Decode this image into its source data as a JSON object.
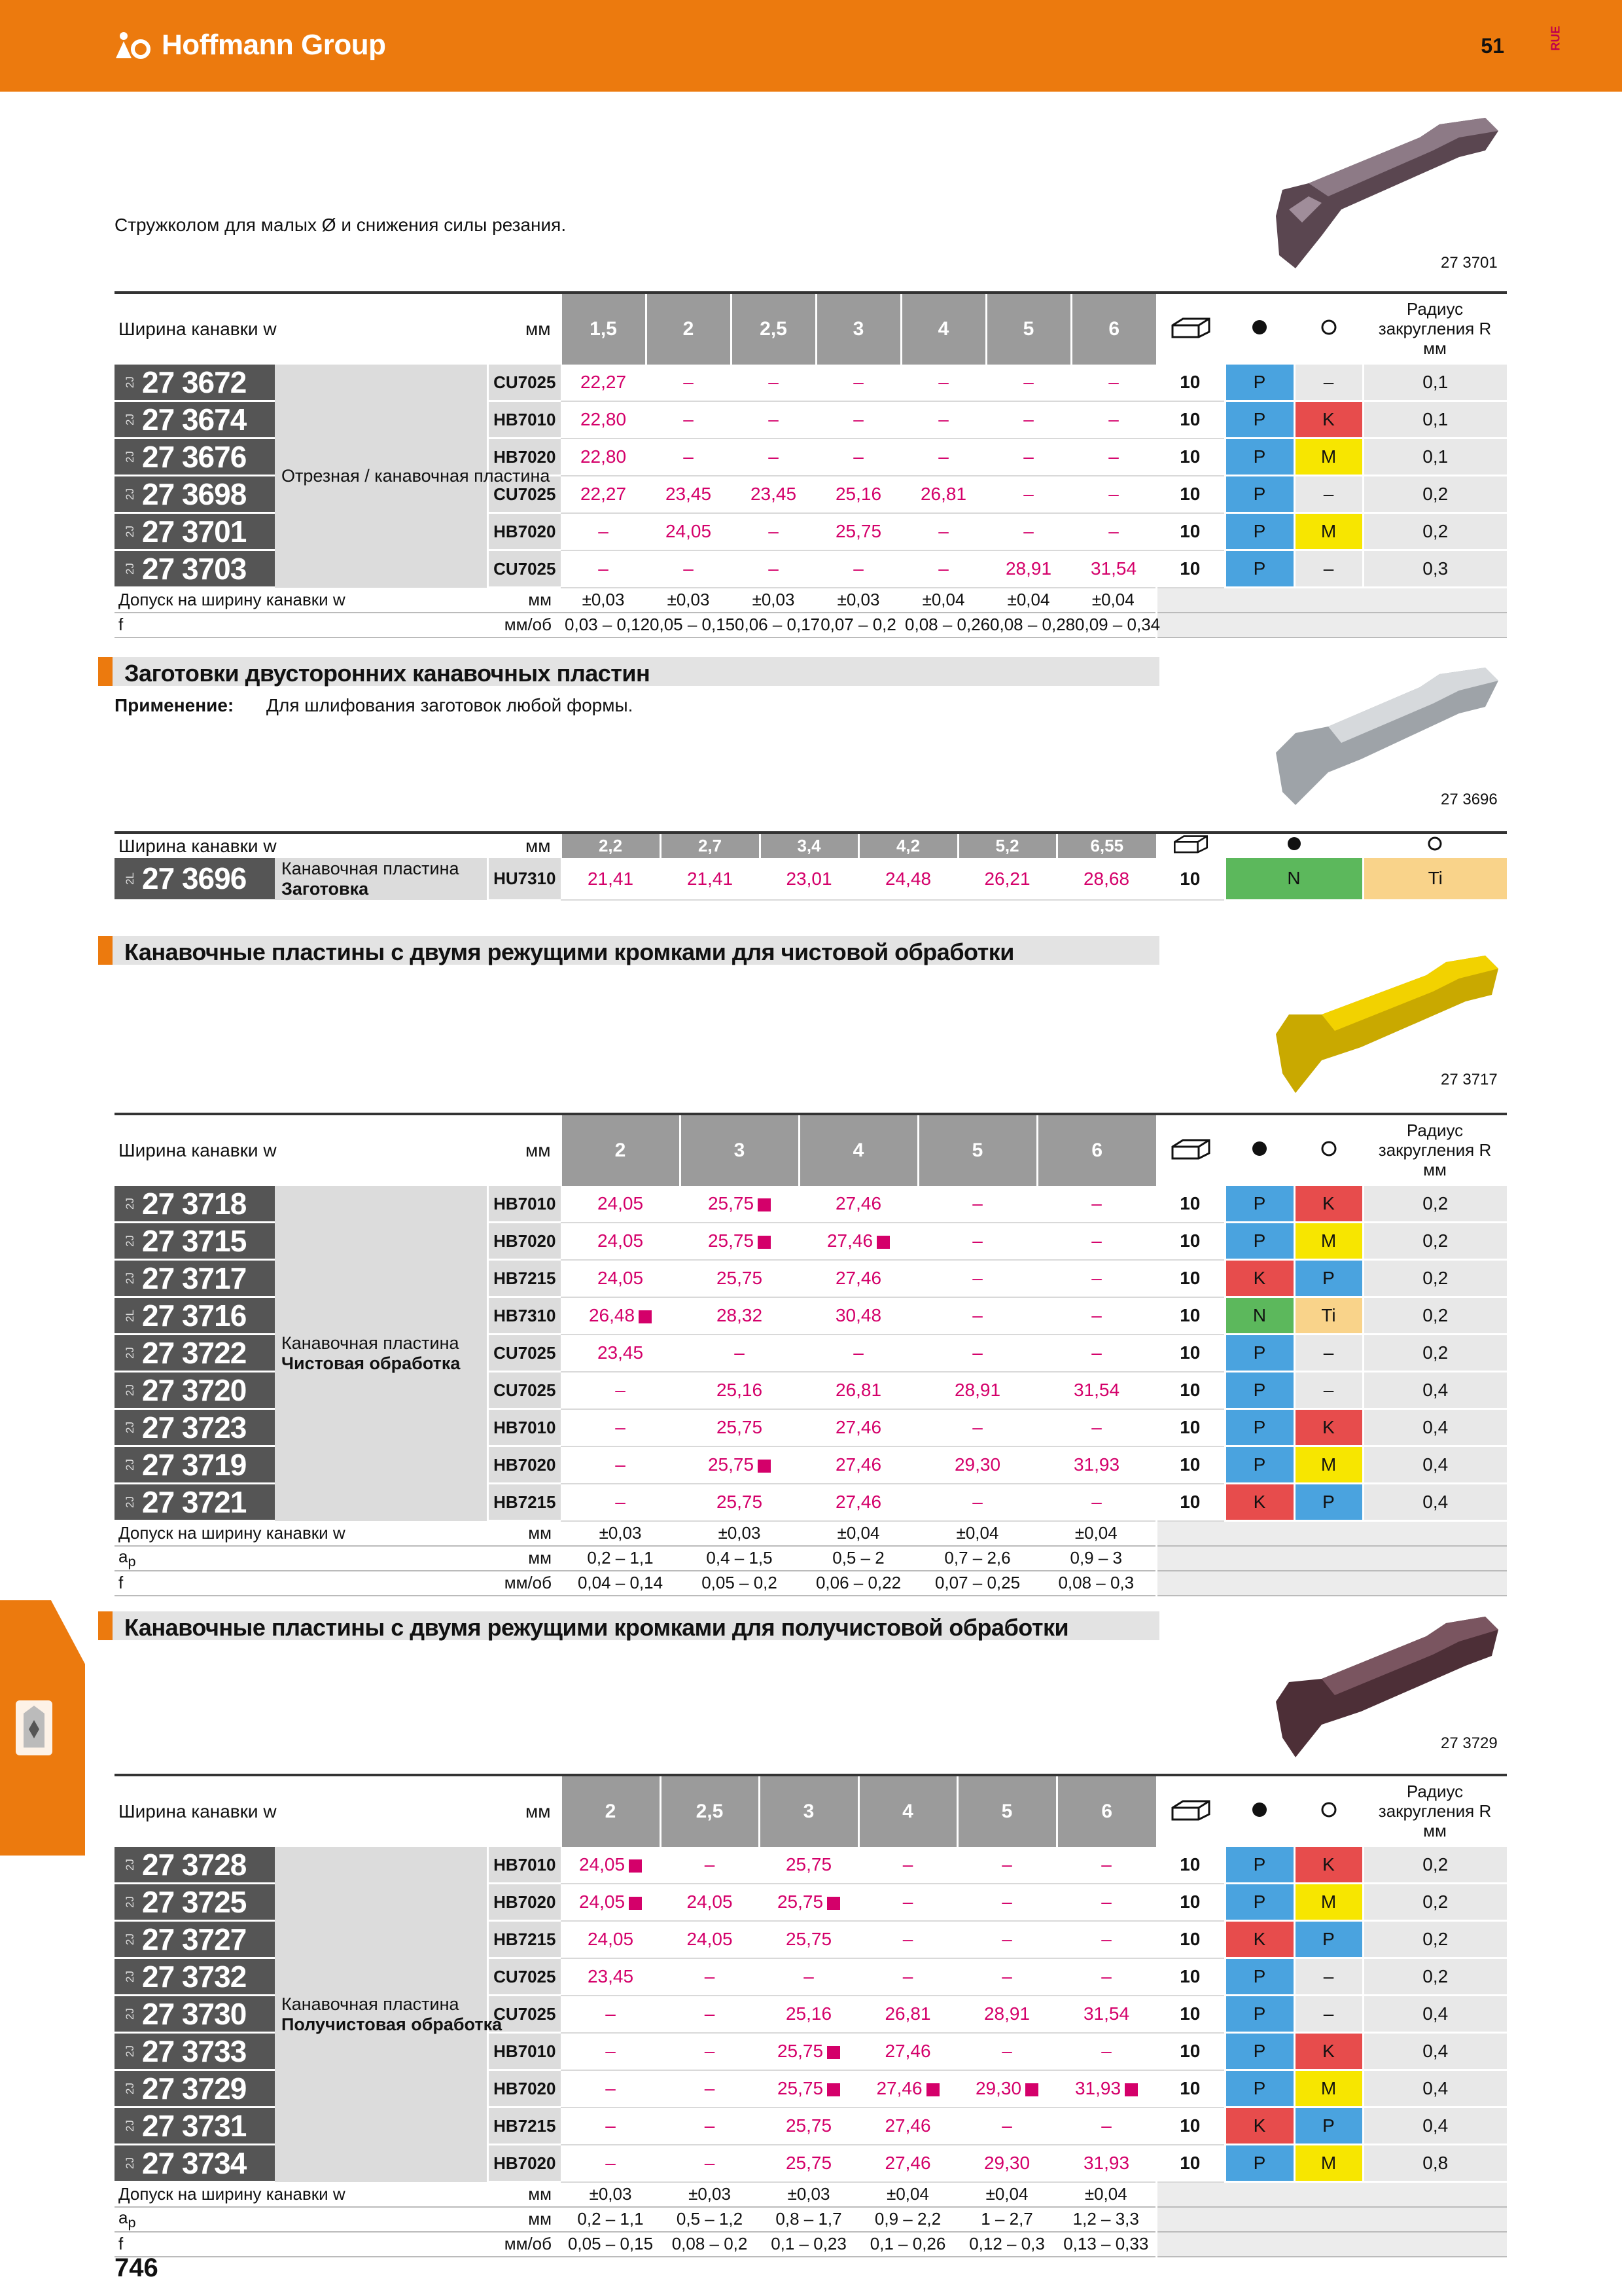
{
  "header": {
    "brand": "Hoffmann Group",
    "page_top": "51",
    "lang": "RUE",
    "page_bottom": "746"
  },
  "intro": "Стружколом для малых Ø и снижения силы резания.",
  "icons": {
    "box": "package-icon",
    "filled": "filled-circle-icon",
    "empty": "empty-circle-icon",
    "brand_mark": "hoffmann-logo-icon",
    "side": "grooving-tool-icon"
  },
  "labels": {
    "width": "Ширина канавки w",
    "mm": "мм",
    "radius": "Радиус закругления R мм",
    "tolerance": "Допуск на ширину канавки w",
    "ap": "a",
    "ap_sub": "p",
    "f": "f",
    "mm_ob": "мм/об"
  },
  "colors": {
    "orange": "#ec7a0e",
    "magenta": "#d4006a",
    "P": "#4aa3df",
    "K": "#e74c4c",
    "M": "#f7e600",
    "N": "#5cb85c",
    "Ti": "#f9d38a"
  },
  "table1": {
    "image_caption": "27 3701",
    "widths": [
      "1,5",
      "2",
      "2,5",
      "3",
      "4",
      "5",
      "6"
    ],
    "description": "Отрезная / канавочная пластина",
    "rows": [
      {
        "prefix": "2J",
        "code": "27 3672",
        "grade": "CU7025",
        "vals": [
          "22,27",
          "–",
          "–",
          "–",
          "–",
          "–",
          "–"
        ],
        "pack": "10",
        "m1": "P",
        "m2": "–",
        "r": "0,1"
      },
      {
        "prefix": "2J",
        "code": "27 3674",
        "grade": "HB7010",
        "vals": [
          "22,80",
          "–",
          "–",
          "–",
          "–",
          "–",
          "–"
        ],
        "pack": "10",
        "m1": "P",
        "m2": "K",
        "r": "0,1"
      },
      {
        "prefix": "2J",
        "code": "27 3676",
        "grade": "HB7020",
        "vals": [
          "22,80",
          "–",
          "–",
          "–",
          "–",
          "–",
          "–"
        ],
        "pack": "10",
        "m1": "P",
        "m2": "M",
        "r": "0,1"
      },
      {
        "prefix": "2J",
        "code": "27 3698",
        "grade": "CU7025",
        "vals": [
          "22,27",
          "23,45",
          "23,45",
          "25,16",
          "26,81",
          "–",
          "–"
        ],
        "pack": "10",
        "m1": "P",
        "m2": "–",
        "r": "0,2"
      },
      {
        "prefix": "2J",
        "code": "27 3701",
        "grade": "HB7020",
        "vals": [
          "–",
          "24,05",
          "–",
          "25,75",
          "–",
          "–",
          "–"
        ],
        "pack": "10",
        "m1": "P",
        "m2": "M",
        "r": "0,2"
      },
      {
        "prefix": "2J",
        "code": "27 3703",
        "grade": "CU7025",
        "vals": [
          "–",
          "–",
          "–",
          "–",
          "–",
          "28,91",
          "31,54"
        ],
        "pack": "10",
        "m1": "P",
        "m2": "–",
        "r": "0,3"
      }
    ],
    "tolerance": [
      "±0,03",
      "±0,03",
      "±0,03",
      "±0,03",
      "±0,04",
      "±0,04",
      "±0,04"
    ],
    "f": [
      "0,03 – 0,12",
      "0,05 – 0,15",
      "0,06 – 0,17",
      "0,07 – 0,2",
      "0,08 – 0,26",
      "0,08 – 0,28",
      "0,09 – 0,34"
    ]
  },
  "section2": {
    "title": "Заготовки двусторонних канавочных пластин",
    "apply_label": "Применение:",
    "apply_text": "Для шлифования заготовок любой формы.",
    "image_caption": "27 3696",
    "widths": [
      "2,2",
      "2,7",
      "3,4",
      "4,2",
      "5,2",
      "6,55"
    ],
    "row": {
      "prefix": "2L",
      "code": "27 3696",
      "desc1": "Канавочная пластина",
      "desc2": "Заготовка",
      "grade": "HU7310",
      "vals": [
        "21,41",
        "21,41",
        "23,01",
        "24,48",
        "26,21",
        "28,68"
      ],
      "pack": "10",
      "m1": "N",
      "m2": "Ti"
    }
  },
  "section3": {
    "title": "Канавочные пластины с двумя режущими кромками для чистовой обработки",
    "image_caption": "27 3717",
    "widths": [
      "2",
      "3",
      "4",
      "5",
      "6"
    ],
    "desc1": "Канавочная пластина",
    "desc2": "Чистовая обработка",
    "rows": [
      {
        "prefix": "2J",
        "code": "27 3718",
        "grade": "HB7010",
        "vals": [
          "24,05",
          "25,75",
          "27,46",
          "–",
          "–"
        ],
        "sq": [
          false,
          true,
          false,
          false,
          false
        ],
        "pack": "10",
        "m1": "P",
        "m2": "K",
        "r": "0,2"
      },
      {
        "prefix": "2J",
        "code": "27 3715",
        "grade": "HB7020",
        "vals": [
          "24,05",
          "25,75",
          "27,46",
          "–",
          "–"
        ],
        "sq": [
          false,
          true,
          true,
          false,
          false
        ],
        "pack": "10",
        "m1": "P",
        "m2": "M",
        "r": "0,2"
      },
      {
        "prefix": "2J",
        "code": "27 3717",
        "grade": "HB7215",
        "vals": [
          "24,05",
          "25,75",
          "27,46",
          "–",
          "–"
        ],
        "sq": [
          false,
          false,
          false,
          false,
          false
        ],
        "pack": "10",
        "m1": "K",
        "m2": "P",
        "r": "0,2"
      },
      {
        "prefix": "2L",
        "code": "27 3716",
        "grade": "HB7310",
        "vals": [
          "26,48",
          "28,32",
          "30,48",
          "–",
          "–"
        ],
        "sq": [
          true,
          false,
          false,
          false,
          false
        ],
        "pack": "10",
        "m1": "N",
        "m2": "Ti",
        "r": "0,2"
      },
      {
        "prefix": "2J",
        "code": "27 3722",
        "grade": "CU7025",
        "vals": [
          "23,45",
          "–",
          "–",
          "–",
          "–"
        ],
        "sq": [
          false,
          false,
          false,
          false,
          false
        ],
        "pack": "10",
        "m1": "P",
        "m2": "–",
        "r": "0,2"
      },
      {
        "prefix": "2J",
        "code": "27 3720",
        "grade": "CU7025",
        "vals": [
          "–",
          "25,16",
          "26,81",
          "28,91",
          "31,54"
        ],
        "sq": [
          false,
          false,
          false,
          false,
          false
        ],
        "pack": "10",
        "m1": "P",
        "m2": "–",
        "r": "0,4"
      },
      {
        "prefix": "2J",
        "code": "27 3723",
        "grade": "HB7010",
        "vals": [
          "–",
          "25,75",
          "27,46",
          "–",
          "–"
        ],
        "sq": [
          false,
          false,
          false,
          false,
          false
        ],
        "pack": "10",
        "m1": "P",
        "m2": "K",
        "r": "0,4"
      },
      {
        "prefix": "2J",
        "code": "27 3719",
        "grade": "HB7020",
        "vals": [
          "–",
          "25,75",
          "27,46",
          "29,30",
          "31,93"
        ],
        "sq": [
          false,
          true,
          false,
          false,
          false
        ],
        "pack": "10",
        "m1": "P",
        "m2": "M",
        "r": "0,4"
      },
      {
        "prefix": "2J",
        "code": "27 3721",
        "grade": "HB7215",
        "vals": [
          "–",
          "25,75",
          "27,46",
          "–",
          "–"
        ],
        "sq": [
          false,
          false,
          false,
          false,
          false
        ],
        "pack": "10",
        "m1": "K",
        "m2": "P",
        "r": "0,4"
      }
    ],
    "tolerance": [
      "±0,03",
      "±0,03",
      "±0,04",
      "±0,04",
      "±0,04"
    ],
    "ap": [
      "0,2 – 1,1",
      "0,4 – 1,5",
      "0,5 – 2",
      "0,7 – 2,6",
      "0,9 – 3"
    ],
    "f": [
      "0,04 – 0,14",
      "0,05 – 0,2",
      "0,06 – 0,22",
      "0,07 – 0,25",
      "0,08 – 0,3"
    ]
  },
  "section4": {
    "title": "Канавочные пластины с двумя режущими кромками для получистовой обработки",
    "image_caption": "27 3729",
    "widths": [
      "2",
      "2,5",
      "3",
      "4",
      "5",
      "6"
    ],
    "desc1": "Канавочная пластина",
    "desc2": "Получистовая обработка",
    "rows": [
      {
        "prefix": "2J",
        "code": "27 3728",
        "grade": "HB7010",
        "vals": [
          "24,05",
          "–",
          "25,75",
          "–",
          "–",
          "–"
        ],
        "sq": [
          true,
          false,
          false,
          false,
          false,
          false
        ],
        "pack": "10",
        "m1": "P",
        "m2": "K",
        "r": "0,2"
      },
      {
        "prefix": "2J",
        "code": "27 3725",
        "grade": "HB7020",
        "vals": [
          "24,05",
          "24,05",
          "25,75",
          "–",
          "–",
          "–"
        ],
        "sq": [
          true,
          false,
          true,
          false,
          false,
          false
        ],
        "pack": "10",
        "m1": "P",
        "m2": "M",
        "r": "0,2"
      },
      {
        "prefix": "2J",
        "code": "27 3727",
        "grade": "HB7215",
        "vals": [
          "24,05",
          "24,05",
          "25,75",
          "–",
          "–",
          "–"
        ],
        "sq": [
          false,
          false,
          false,
          false,
          false,
          false
        ],
        "pack": "10",
        "m1": "K",
        "m2": "P",
        "r": "0,2"
      },
      {
        "prefix": "2J",
        "code": "27 3732",
        "grade": "CU7025",
        "vals": [
          "23,45",
          "–",
          "–",
          "–",
          "–",
          "–"
        ],
        "sq": [
          false,
          false,
          false,
          false,
          false,
          false
        ],
        "pack": "10",
        "m1": "P",
        "m2": "–",
        "r": "0,2"
      },
      {
        "prefix": "2J",
        "code": "27 3730",
        "grade": "CU7025",
        "vals": [
          "–",
          "–",
          "25,16",
          "26,81",
          "28,91",
          "31,54"
        ],
        "sq": [
          false,
          false,
          false,
          false,
          false,
          false
        ],
        "pack": "10",
        "m1": "P",
        "m2": "–",
        "r": "0,4"
      },
      {
        "prefix": "2J",
        "code": "27 3733",
        "grade": "HB7010",
        "vals": [
          "–",
          "–",
          "25,75",
          "27,46",
          "–",
          "–"
        ],
        "sq": [
          false,
          false,
          true,
          false,
          false,
          false
        ],
        "pack": "10",
        "m1": "P",
        "m2": "K",
        "r": "0,4"
      },
      {
        "prefix": "2J",
        "code": "27 3729",
        "grade": "HB7020",
        "vals": [
          "–",
          "–",
          "25,75",
          "27,46",
          "29,30",
          "31,93"
        ],
        "sq": [
          false,
          false,
          true,
          true,
          true,
          true
        ],
        "pack": "10",
        "m1": "P",
        "m2": "M",
        "r": "0,4"
      },
      {
        "prefix": "2J",
        "code": "27 3731",
        "grade": "HB7215",
        "vals": [
          "–",
          "–",
          "25,75",
          "27,46",
          "–",
          "–"
        ],
        "sq": [
          false,
          false,
          false,
          false,
          false,
          false
        ],
        "pack": "10",
        "m1": "K",
        "m2": "P",
        "r": "0,4"
      },
      {
        "prefix": "2J",
        "code": "27 3734",
        "grade": "HB7020",
        "vals": [
          "–",
          "–",
          "25,75",
          "27,46",
          "29,30",
          "31,93"
        ],
        "sq": [
          false,
          false,
          false,
          false,
          false,
          false
        ],
        "pack": "10",
        "m1": "P",
        "m2": "M",
        "r": "0,8"
      }
    ],
    "tolerance": [
      "±0,03",
      "±0,03",
      "±0,03",
      "±0,04",
      "±0,04",
      "±0,04"
    ],
    "ap": [
      "0,2 – 1,1",
      "0,5 – 1,2",
      "0,8 – 1,7",
      "0,9 – 2,2",
      "1 – 2,7",
      "1,2 – 3,3"
    ],
    "f": [
      "0,05 – 0,15",
      "0,08 – 0,2",
      "0,1 – 0,23",
      "0,1 – 0,26",
      "0,12 – 0,3",
      "0,13 – 0,33"
    ]
  }
}
